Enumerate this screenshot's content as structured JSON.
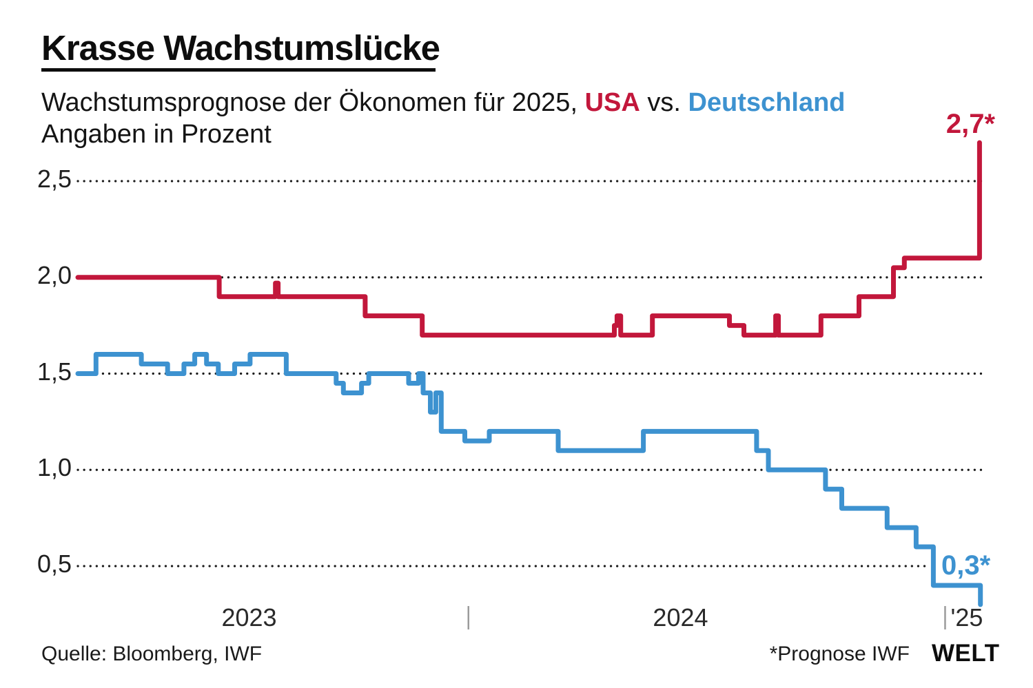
{
  "header": {
    "title": "Krasse Wachstumslücke",
    "subtitle_prefix": "Wachstumsprognose der Ökonomen für 2025, ",
    "subtitle_usa": "USA",
    "subtitle_vs": " vs. ",
    "subtitle_deutschland": "Deutschland",
    "subtitle_line2": "Angaben in Prozent"
  },
  "footer": {
    "source": "Quelle: Bloomberg, IWF",
    "forecast_note": "*Prognose IWF",
    "brand": "WELT"
  },
  "colors": {
    "usa": "#c2173b",
    "deutschland": "#3d92d0",
    "grid_dots": "#1a1a1a",
    "axis_tick": "#9b9b9b"
  },
  "chart_data": {
    "type": "line",
    "style": "step-after",
    "title": "Wachstumsprognose der Ökonomen für 2025, USA vs. Deutschland",
    "ylabel": "Angaben in Prozent",
    "ylim": [
      0.3,
      2.7
    ],
    "grid": "dotted horizontal lines at each y tick",
    "legend_position": "none (colored words in subtitle)",
    "y_ticks": [
      {
        "label": "2,5",
        "value": 2.5
      },
      {
        "label": "2,0",
        "value": 2.0
      },
      {
        "label": "1,5",
        "value": 1.5
      },
      {
        "label": "1,0",
        "value": 1.0
      },
      {
        "label": "0,5",
        "value": 0.5,
        "end_t": 0.94
      }
    ],
    "x_ticks": [
      {
        "label": "2023",
        "t": 0.189
      },
      {
        "label": "2024",
        "t": 0.665
      },
      {
        "label": "'25",
        "t": 0.981
      }
    ],
    "x_tick_marks": [
      0.431,
      0.957
    ],
    "series": [
      {
        "name": "USA",
        "color": "#c2173b",
        "final_label": "2,7*",
        "final_value": 2.7,
        "points": [
          [
            0.0,
            2.0
          ],
          [
            0.156,
            1.9
          ],
          [
            0.218,
            1.97
          ],
          [
            0.221,
            1.9
          ],
          [
            0.317,
            1.8
          ],
          [
            0.38,
            1.7
          ],
          [
            0.592,
            1.75
          ],
          [
            0.595,
            1.8
          ],
          [
            0.599,
            1.7
          ],
          [
            0.634,
            1.8
          ],
          [
            0.719,
            1.75
          ],
          [
            0.735,
            1.7
          ],
          [
            0.77,
            1.8
          ],
          [
            0.773,
            1.7
          ],
          [
            0.82,
            1.8
          ],
          [
            0.862,
            1.9
          ],
          [
            0.9,
            2.05
          ],
          [
            0.912,
            2.1
          ],
          [
            0.995,
            2.7
          ]
        ]
      },
      {
        "name": "Deutschland",
        "color": "#3d92d0",
        "final_label": "0,3*",
        "final_value": 0.3,
        "points": [
          [
            0.0,
            1.5
          ],
          [
            0.02,
            1.6
          ],
          [
            0.07,
            1.55
          ],
          [
            0.099,
            1.5
          ],
          [
            0.117,
            1.55
          ],
          [
            0.129,
            1.6
          ],
          [
            0.142,
            1.55
          ],
          [
            0.155,
            1.5
          ],
          [
            0.173,
            1.55
          ],
          [
            0.19,
            1.6
          ],
          [
            0.23,
            1.5
          ],
          [
            0.285,
            1.45
          ],
          [
            0.293,
            1.4
          ],
          [
            0.313,
            1.45
          ],
          [
            0.321,
            1.5
          ],
          [
            0.365,
            1.45
          ],
          [
            0.376,
            1.5
          ],
          [
            0.381,
            1.4
          ],
          [
            0.389,
            1.3
          ],
          [
            0.395,
            1.4
          ],
          [
            0.401,
            1.2
          ],
          [
            0.427,
            1.15
          ],
          [
            0.454,
            1.2
          ],
          [
            0.53,
            1.1
          ],
          [
            0.624,
            1.2
          ],
          [
            0.749,
            1.1
          ],
          [
            0.762,
            1.0
          ],
          [
            0.825,
            0.9
          ],
          [
            0.843,
            0.8
          ],
          [
            0.893,
            0.7
          ],
          [
            0.925,
            0.6
          ],
          [
            0.944,
            0.4
          ],
          [
            0.996,
            0.3
          ]
        ]
      }
    ]
  }
}
